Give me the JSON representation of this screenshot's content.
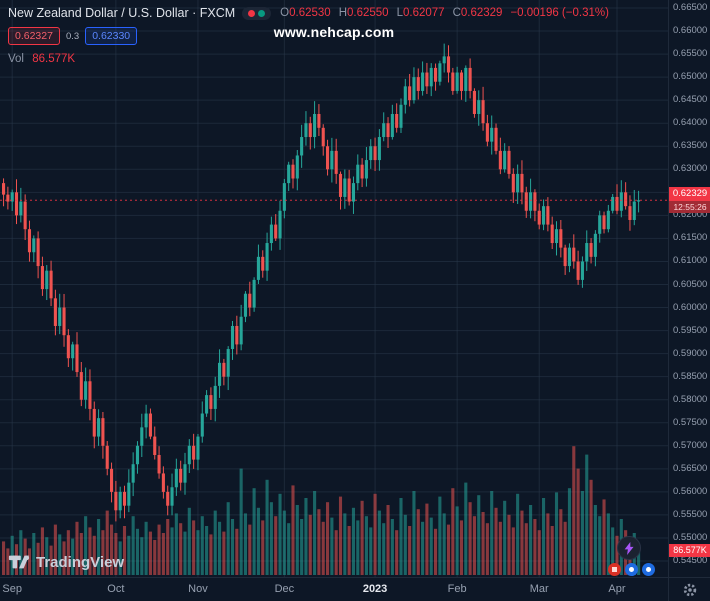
{
  "header": {
    "symbol": "New Zealand Dollar / U.S. Dollar · FXCM",
    "ohlc": [
      {
        "label": "O",
        "value": "0.62530"
      },
      {
        "label": "H",
        "value": "0.62550"
      },
      {
        "label": "L",
        "value": "0.62077"
      },
      {
        "label": "C",
        "value": "0.62329"
      }
    ],
    "change": "−0.00196 (−0.31%)",
    "bid": "0.62327",
    "spread": "0.3",
    "ask": "0.62330",
    "vol_label": "Vol",
    "vol_value": "86.577K"
  },
  "watermark": "www.nehcap.com",
  "logo_text": "TradingView",
  "price_label": {
    "price": "0.62329",
    "countdown": "12:55:26"
  },
  "volume_badge": "86.577K",
  "colors": {
    "up": "#26a69a",
    "down": "#ef5350",
    "accent_red": "#f23645",
    "accent_blue": "#2962ff",
    "grid": "rgba(42,56,74,0.55)",
    "status_red": "#f23645",
    "status_green": "#089981"
  },
  "chart_data": {
    "type": "candlestick",
    "title": "New Zealand Dollar / U.S. Dollar · FXCM",
    "last_close": 0.62329,
    "first_open": 0.627,
    "closes": [
      0.6245,
      0.623,
      0.625,
      0.62,
      0.623,
      0.617,
      0.612,
      0.615,
      0.609,
      0.604,
      0.608,
      0.602,
      0.596,
      0.6,
      0.594,
      0.589,
      0.592,
      0.586,
      0.58,
      0.584,
      0.578,
      0.572,
      0.576,
      0.57,
      0.565,
      0.56,
      0.556,
      0.56,
      0.557,
      0.562,
      0.566,
      0.57,
      0.574,
      0.577,
      0.572,
      0.568,
      0.564,
      0.56,
      0.557,
      0.561,
      0.565,
      0.562,
      0.566,
      0.57,
      0.567,
      0.572,
      0.577,
      0.581,
      0.578,
      0.583,
      0.588,
      0.585,
      0.591,
      0.596,
      0.592,
      0.598,
      0.603,
      0.6,
      0.606,
      0.611,
      0.608,
      0.614,
      0.618,
      0.615,
      0.621,
      0.627,
      0.631,
      0.628,
      0.633,
      0.637,
      0.64,
      0.637,
      0.642,
      0.639,
      0.635,
      0.63,
      0.634,
      0.629,
      0.624,
      0.628,
      0.623,
      0.627,
      0.631,
      0.628,
      0.632,
      0.635,
      0.632,
      0.637,
      0.64,
      0.637,
      0.642,
      0.639,
      0.644,
      0.648,
      0.645,
      0.65,
      0.647,
      0.651,
      0.648,
      0.652,
      0.649,
      0.653,
      0.6545,
      0.651,
      0.647,
      0.651,
      0.647,
      0.652,
      0.647,
      0.642,
      0.645,
      0.64,
      0.636,
      0.639,
      0.634,
      0.63,
      0.634,
      0.629,
      0.625,
      0.629,
      0.625,
      0.621,
      0.625,
      0.621,
      0.618,
      0.622,
      0.618,
      0.614,
      0.617,
      0.613,
      0.609,
      0.613,
      0.61,
      0.606,
      0.61,
      0.614,
      0.611,
      0.616,
      0.62,
      0.617,
      0.621,
      0.624,
      0.621,
      0.625,
      0.622,
      0.619,
      0.623,
      0.62329
    ],
    "volumes": [
      120,
      95,
      140,
      110,
      160,
      130,
      95,
      150,
      115,
      170,
      135,
      105,
      180,
      145,
      120,
      160,
      130,
      190,
      150,
      210,
      170,
      140,
      200,
      160,
      230,
      180,
      150,
      120,
      175,
      140,
      210,
      165,
      135,
      190,
      155,
      125,
      180,
      150,
      200,
      170,
      220,
      185,
      155,
      240,
      195,
      160,
      210,
      175,
      145,
      230,
      190,
      155,
      260,
      200,
      165,
      380,
      220,
      180,
      310,
      240,
      195,
      340,
      260,
      210,
      290,
      230,
      185,
      320,
      250,
      200,
      275,
      215,
      300,
      235,
      190,
      260,
      205,
      160,
      280,
      220,
      175,
      240,
      195,
      265,
      210,
      170,
      290,
      230,
      185,
      250,
      200,
      160,
      275,
      215,
      175,
      300,
      235,
      190,
      255,
      205,
      165,
      280,
      220,
      180,
      310,
      245,
      195,
      330,
      260,
      210,
      285,
      225,
      185,
      300,
      240,
      190,
      265,
      215,
      170,
      290,
      230,
      185,
      250,
      200,
      160,
      275,
      220,
      175,
      295,
      235,
      190,
      310,
      460,
      380,
      300,
      430,
      340,
      250,
      210,
      270,
      220,
      170,
      140,
      200,
      160,
      120,
      150,
      86.577
    ],
    "last_volume_k": 86.577,
    "y_axis": {
      "min": 0.545,
      "max": 0.665,
      "step": 0.005,
      "tick_labels": [
        "0.66500",
        "0.66000",
        "0.65500",
        "0.65000",
        "0.64500",
        "0.64000",
        "0.63500",
        "0.63000",
        "0.62500",
        "0.62000",
        "0.61500",
        "0.61000",
        "0.60500",
        "0.60000",
        "0.59500",
        "0.59000",
        "0.58500",
        "0.58000",
        "0.57500",
        "0.57000",
        "0.56500",
        "0.56000",
        "0.55500",
        "0.55000",
        "0.54500"
      ]
    },
    "x_axis": {
      "months": [
        {
          "label": "Sep",
          "index": 2,
          "major": false
        },
        {
          "label": "Oct",
          "index": 26,
          "major": false
        },
        {
          "label": "Nov",
          "index": 45,
          "major": false
        },
        {
          "label": "Dec",
          "index": 65,
          "major": false
        },
        {
          "label": "2023",
          "index": 86,
          "major": true
        },
        {
          "label": "Feb",
          "index": 105,
          "major": false
        },
        {
          "label": "Mar",
          "index": 124,
          "major": false
        },
        {
          "label": "Apr",
          "index": 142,
          "major": false
        }
      ]
    },
    "legend_position": "top-left",
    "grid": true
  }
}
